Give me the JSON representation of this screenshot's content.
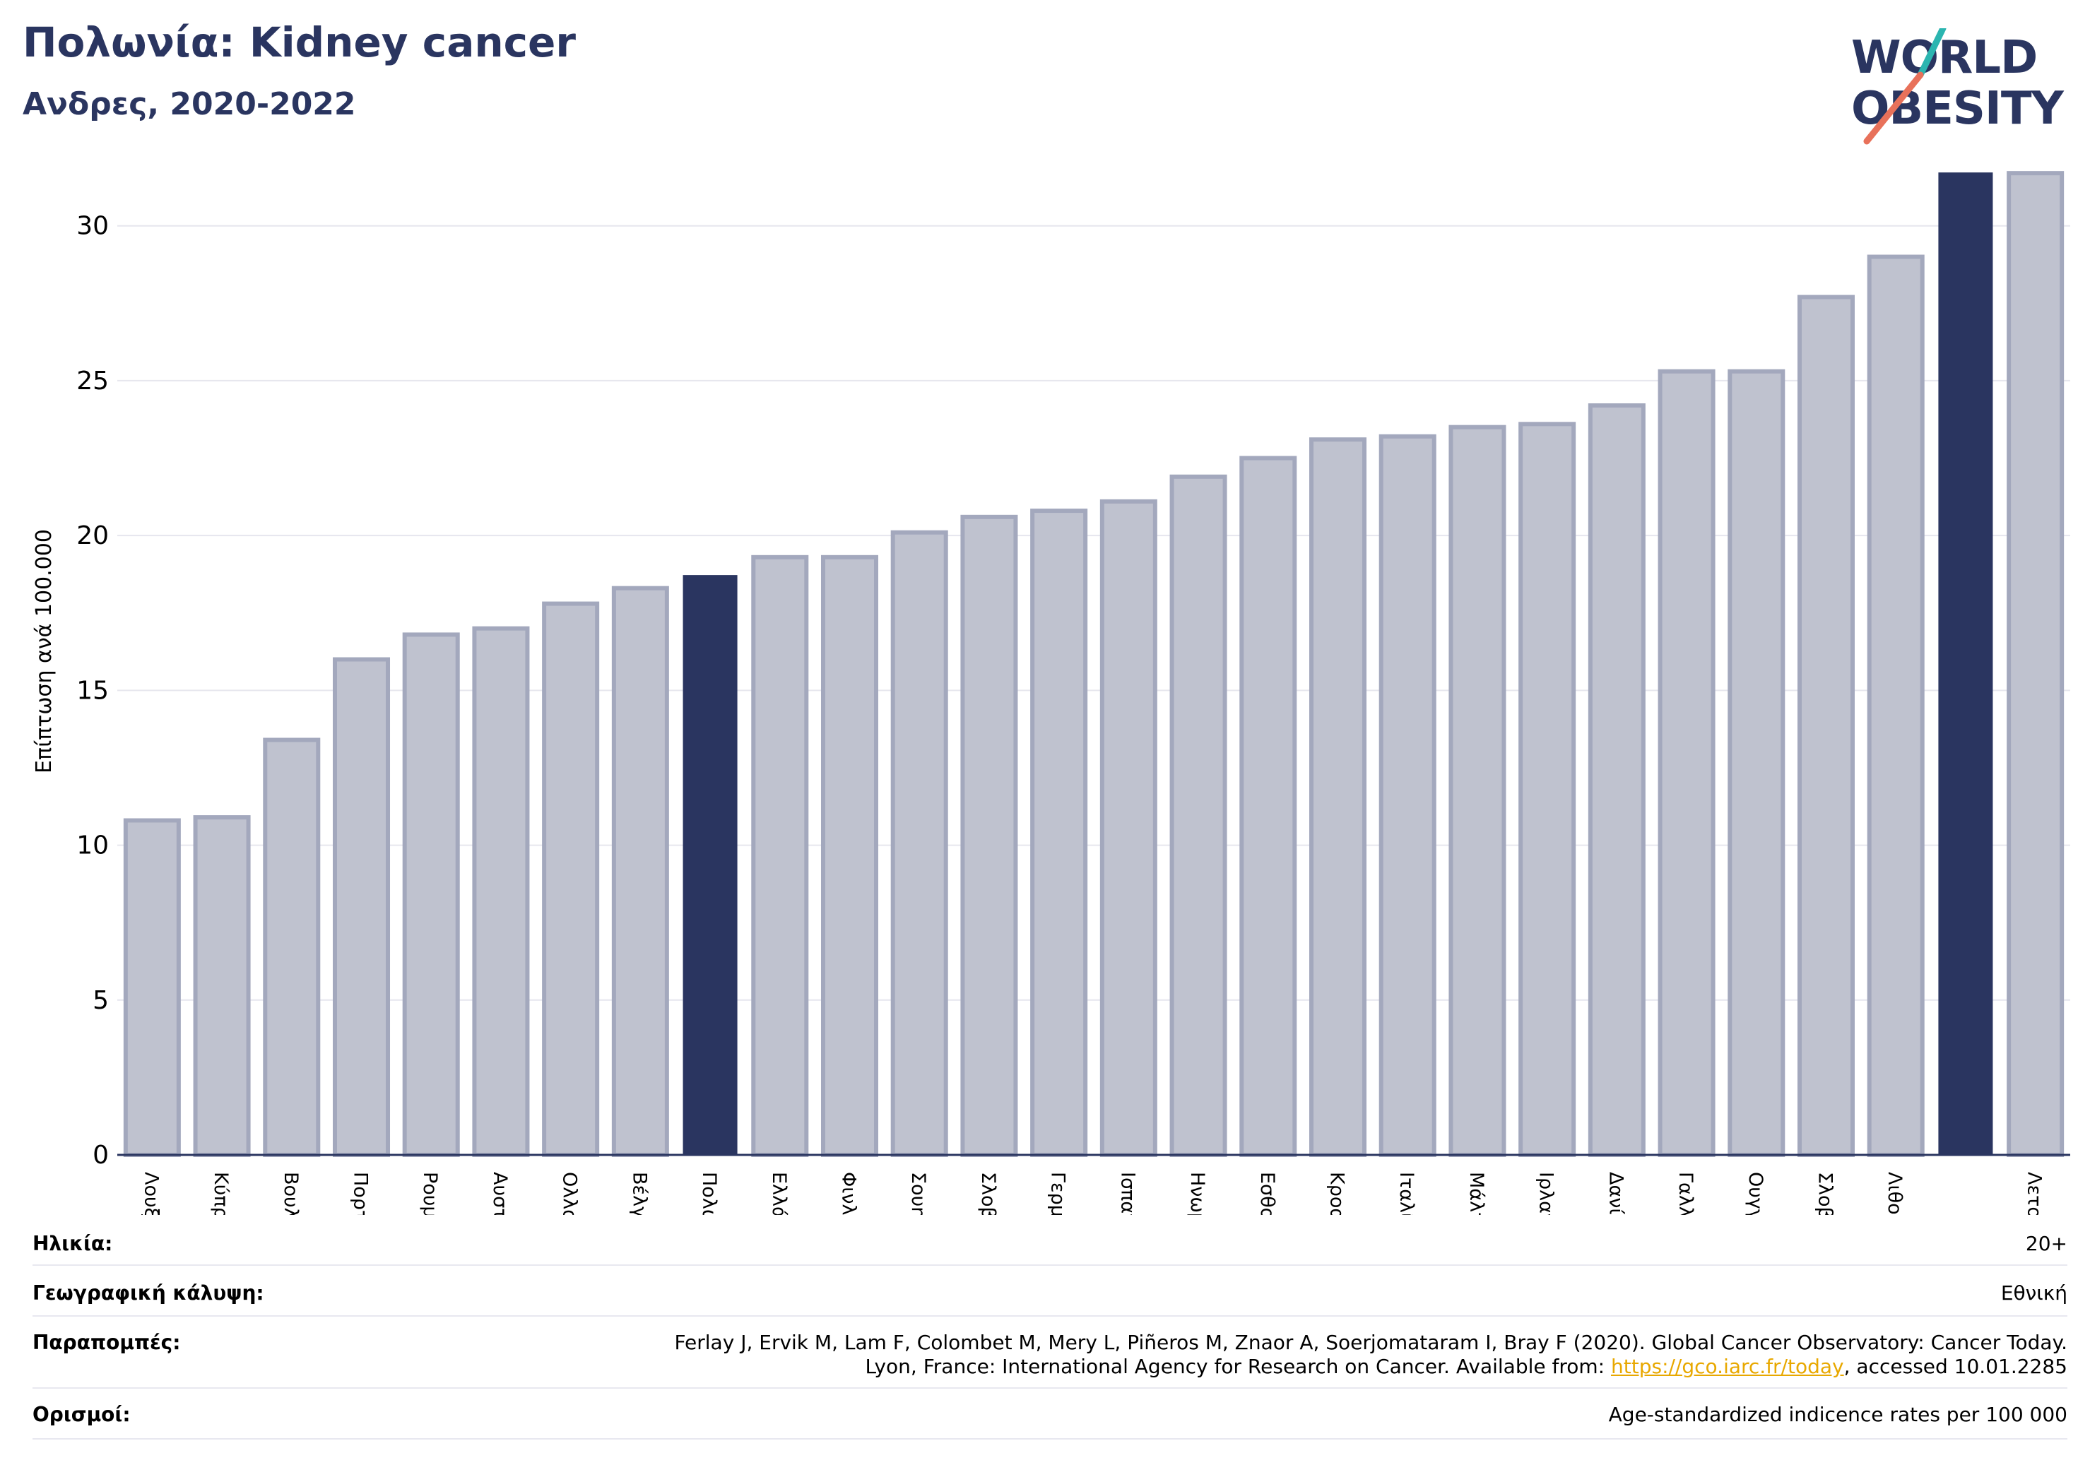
{
  "header": {
    "title": "Πολωνία: Kidney cancer",
    "subtitle": "Ανδρες, 2020-2022"
  },
  "logo": {
    "line1": "WORLD",
    "line2": "OBESITY"
  },
  "colors": {
    "highlight": "#2a3560",
    "bar_fill": "#bfc2cf",
    "bar_stroke": "#a3a8bd",
    "logo_teal": "#2bb5b0",
    "logo_coral": "#e8715a"
  },
  "chart_data": {
    "type": "bar",
    "ylabel": "Επίπτωση ανά 100.000",
    "ylim": [
      0,
      32
    ],
    "yticks": [
      0,
      5,
      10,
      15,
      20,
      25,
      30
    ],
    "grid": true,
    "categories": [
      "Λουξεμβούργο",
      "Κύπρος",
      "Βουλγαρία",
      "Πορτογαλία",
      "Ρουμανία",
      "Αυστρία",
      "Ολλανδία",
      "Βέλγιο",
      "Πολωνία",
      "Ελλάδα",
      "Φινλανδία",
      "Σουηδία",
      "Σλοβενία",
      "Γερμανία",
      "Ισπανία",
      "Ηνωμένο Βασίλειο",
      "Εσθονία",
      "Κροατία",
      "Ιταλία",
      "Μάλτα",
      "Ιρλανδία",
      "Δανία",
      "Γαλλία",
      "Ουγγαρία",
      "Σλοβακία",
      "Λιθουανία",
      "",
      "Λετονία"
    ],
    "values": [
      10.8,
      10.9,
      13.4,
      16.0,
      16.8,
      17.0,
      17.8,
      18.3,
      18.7,
      19.3,
      19.3,
      20.1,
      20.6,
      20.8,
      21.1,
      21.9,
      22.5,
      23.1,
      23.2,
      23.5,
      23.6,
      24.2,
      25.3,
      25.3,
      27.7,
      29.0,
      31.7,
      31.7
    ],
    "highlighted": [
      8,
      26
    ]
  },
  "info": {
    "age_label": "Ηλικία:",
    "age_value": "20+",
    "coverage_label": "Γεωγραφική κάλυψη:",
    "coverage_value": "Εθνική",
    "references_label": "Παραπομπές:",
    "references_line1": "Ferlay J, Ervik M, Lam F, Colombet M, Mery L, Piñeros M, Znaor A, Soerjomataram I, Bray F (2020). Global Cancer Observatory: Cancer Today.",
    "references_line2_prefix": "Lyon, France: International Agency for Research on Cancer. Available from: ",
    "references_link": "https://gco.iarc.fr/today",
    "references_line2_suffix": ", accessed 10.01.2285",
    "definitions_label": "Ορισμοί:",
    "definitions_value": "Age-standardized indicence rates per 100 000"
  }
}
